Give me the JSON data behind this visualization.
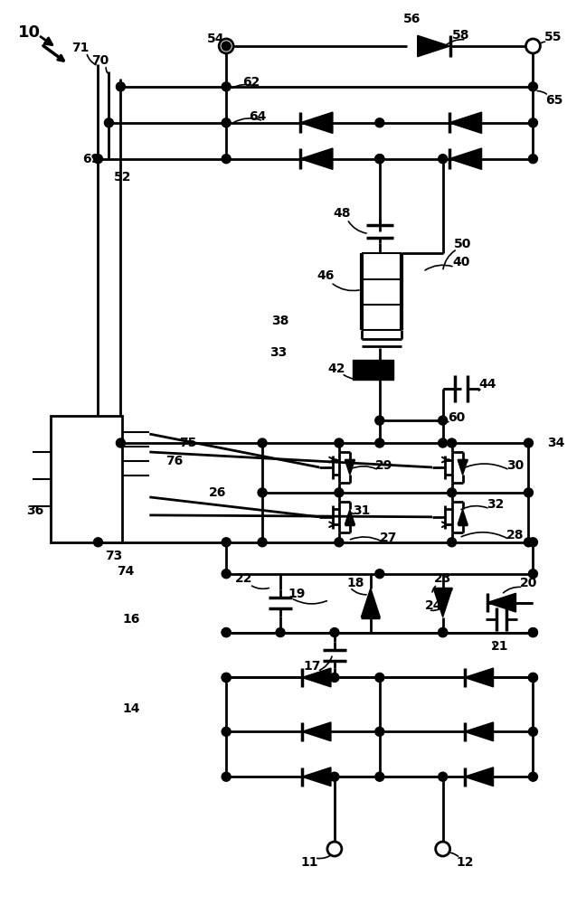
{
  "bg_color": "#ffffff",
  "lc": "#000000",
  "lw": 2.0,
  "fig_w": 6.48,
  "fig_h": 10.0,
  "dpi": 100
}
